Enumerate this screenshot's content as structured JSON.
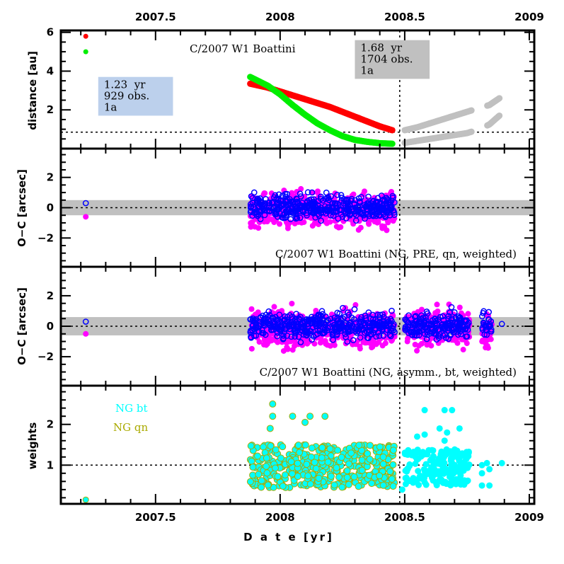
{
  "chart_data": {
    "type": "scatter",
    "title": "C/2007 W1 Boattini",
    "x_axis": {
      "label": "D a t e [yr]",
      "range": [
        2007.12,
        2009.02
      ],
      "major_ticks": [
        2007.5,
        2008,
        2008.5,
        2009
      ],
      "tick_labels": [
        "2007.5",
        "2008",
        "2008.5",
        "2009"
      ],
      "minor_step": 0.1
    },
    "perihelion_marker_x": 2008.48,
    "panels": [
      {
        "id": "distance",
        "ylabel": "distance [au]",
        "ylim": [
          0,
          6.1
        ],
        "ticks": [
          2,
          4,
          6
        ],
        "tick_labels": [
          "2",
          "4",
          "6"
        ],
        "reference_line_y": 0.85,
        "annotation": "C/2007 W1 Boattini",
        "info_boxes": [
          {
            "lines": [
              "1.23  yr",
              "929 obs.",
              "1a"
            ],
            "color": "#bcd0ec",
            "x": [
              2007.27,
              2007.57
            ],
            "y_top": 3.7,
            "y_bot": 1.7
          },
          {
            "lines": [
              "1.68  yr",
              "1704 obs.",
              "1a"
            ],
            "color": "#c0c0c0",
            "x": [
              2008.3,
              2008.6
            ],
            "y_top": 5.6,
            "y_bot": 3.6
          }
        ],
        "series": [
          {
            "name": "heliocentric distance",
            "color": "#ff0000",
            "points_desc": "pre-perihelion",
            "x": [
              2007.22,
              2007.88,
              2007.95,
              2008.0,
              2008.05,
              2008.1,
              2008.15,
              2008.2,
              2008.25,
              2008.3,
              2008.35,
              2008.4,
              2008.45
            ],
            "y": [
              5.8,
              3.35,
              3.15,
              2.95,
              2.75,
              2.55,
              2.35,
              2.15,
              1.9,
              1.65,
              1.4,
              1.15,
              0.95
            ]
          },
          {
            "name": "geocentric distance",
            "color": "#00ee00",
            "x": [
              2007.22,
              2007.88,
              2007.95,
              2008.0,
              2008.05,
              2008.1,
              2008.15,
              2008.2,
              2008.25,
              2008.3,
              2008.35,
              2008.4,
              2008.45
            ],
            "y": [
              5.0,
              3.7,
              3.25,
              2.8,
              2.25,
              1.75,
              1.3,
              0.95,
              0.65,
              0.45,
              0.35,
              0.28,
              0.25
            ]
          },
          {
            "name": "post-perihelion heliocentric",
            "color": "#c0c0c0",
            "x": [
              2008.5,
              2008.55,
              2008.6,
              2008.65,
              2008.7,
              2008.75,
              2008.8,
              2008.84,
              2008.88
            ],
            "y": [
              0.95,
              1.1,
              1.3,
              1.5,
              1.7,
              1.9,
              2.1,
              2.25,
              2.6
            ]
          },
          {
            "name": "post-perihelion geocentric",
            "color": "#c0c0c0",
            "x": [
              2008.5,
              2008.55,
              2008.6,
              2008.65,
              2008.7,
              2008.75,
              2008.8,
              2008.84,
              2008.88
            ],
            "y": [
              0.3,
              0.4,
              0.5,
              0.6,
              0.7,
              0.8,
              1.0,
              1.25,
              1.7
            ]
          }
        ]
      },
      {
        "id": "oc_pre",
        "ylabel": "O−C [arcsec]",
        "ylim": [
          -3.9,
          3.9
        ],
        "ticks": [
          -2,
          0,
          2
        ],
        "tick_labels": [
          "−2",
          "0",
          "2"
        ],
        "reference_line_y": 0,
        "band": [
          -0.5,
          0.5
        ],
        "annotation": "C/2007 W1 Boattini (NG, PRE, qn, weighted)",
        "series": [
          {
            "name": "RA residuals",
            "color": "#ff00ff",
            "marker": "filled",
            "x_range": [
              2007.88,
              2008.46
            ],
            "y_spread": 0.75,
            "outlier": {
              "x": 2007.22,
              "y": -0.6
            }
          },
          {
            "name": "Dec residuals",
            "color": "#0000ff",
            "marker": "open",
            "x_range": [
              2007.88,
              2008.46
            ],
            "y_spread": 0.55,
            "outlier": {
              "x": 2007.22,
              "y": 0.3
            }
          }
        ]
      },
      {
        "id": "oc_full",
        "ylabel": "O−C [arcsec]",
        "ylim": [
          -3.9,
          3.9
        ],
        "ticks": [
          -2,
          0,
          2
        ],
        "tick_labels": [
          "−2",
          "0",
          "2"
        ],
        "reference_line_y": 0,
        "band": [
          -0.6,
          0.6
        ],
        "annotation": "C/2007 W1 Boattini (NG, asymm., bt, weighted)",
        "series": [
          {
            "name": "RA residuals",
            "color": "#ff00ff",
            "marker": "filled",
            "x_ranges": [
              [
                2007.88,
                2008.46
              ],
              [
                2008.5,
                2008.76
              ],
              [
                2008.81,
                2008.85
              ]
            ],
            "y_spread": 0.8,
            "outlier": {
              "x": 2007.22,
              "y": -0.5
            }
          },
          {
            "name": "Dec residuals",
            "color": "#0000ff",
            "marker": "open",
            "x_ranges": [
              [
                2007.88,
                2008.46
              ],
              [
                2008.5,
                2008.76
              ],
              [
                2008.81,
                2008.85
              ]
            ],
            "y_spread": 0.6,
            "outlier": {
              "x": 2007.22,
              "y": 0.3
            },
            "extra_point": {
              "x": 2008.89,
              "y": 0.15
            }
          }
        ]
      },
      {
        "id": "weights",
        "ylabel": "weights",
        "ylim": [
          0.05,
          2.95
        ],
        "ticks": [
          1,
          2
        ],
        "tick_labels": [
          "1",
          "2"
        ],
        "reference_line_y": 1,
        "legend": [
          {
            "label": "NG bt",
            "color": "#00ffff"
          },
          {
            "label": "NG qn",
            "color": "#aaaa00"
          }
        ],
        "series": [
          {
            "name": "NG qn",
            "color": "#00ffff",
            "edge": "#aaaa00",
            "x_range": [
              2007.88,
              2008.46
            ],
            "y_range": [
              0.45,
              1.5
            ],
            "high_points": [
              [
                2007.97,
                2.5
              ],
              [
                2007.97,
                2.2
              ],
              [
                2007.96,
                1.9
              ],
              [
                2008.05,
                2.2
              ],
              [
                2008.12,
                2.2
              ],
              [
                2008.18,
                2.2
              ],
              [
                2008.1,
                2.05
              ]
            ],
            "outlier": {
              "x": 2007.22,
              "y": 0.15
            }
          },
          {
            "name": "NG bt",
            "color": "#00ffff",
            "x_range": [
              2008.5,
              2008.76
            ],
            "y_range": [
              0.5,
              1.4
            ],
            "high_points": [
              [
                2008.58,
                2.35
              ],
              [
                2008.66,
                2.35
              ],
              [
                2008.69,
                2.35
              ],
              [
                2008.64,
                1.9
              ],
              [
                2008.67,
                1.8
              ],
              [
                2008.72,
                1.9
              ],
              [
                2008.55,
                1.7
              ],
              [
                2008.58,
                1.75
              ],
              [
                2008.66,
                1.6
              ]
            ],
            "extra": [
              [
                2008.81,
                1.0
              ],
              [
                2008.83,
                1.05
              ],
              [
                2008.84,
                0.9
              ],
              [
                2008.81,
                0.8
              ],
              [
                2008.84,
                0.5
              ],
              [
                2008.81,
                0.5
              ],
              [
                2008.89,
                1.05
              ],
              [
                2008.49,
                0.4
              ]
            ]
          }
        ]
      }
    ]
  }
}
